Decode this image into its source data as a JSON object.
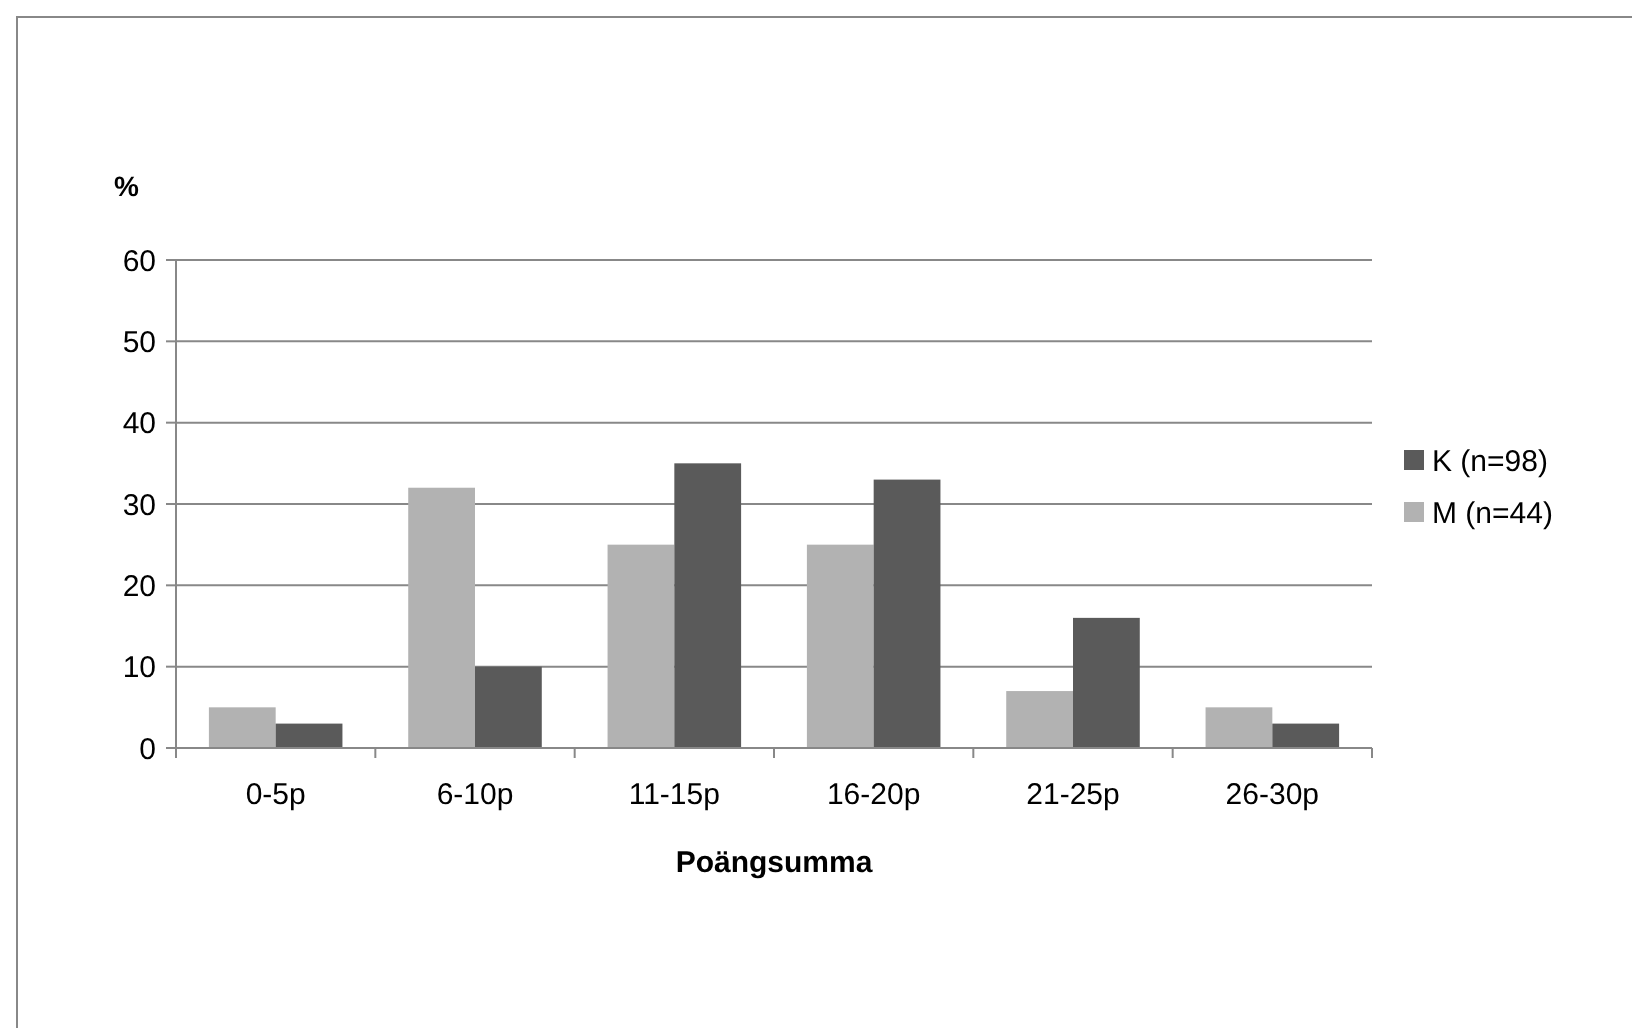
{
  "chart_data": {
    "type": "bar",
    "ylabel": "%",
    "xlabel": "Poängsumma",
    "categories": [
      "0-5p",
      "6-10p",
      "11-15p",
      "16-20p",
      "21-25p",
      "26-30p"
    ],
    "series": [
      {
        "name": "M (n=44)",
        "color": "#b2b2b2",
        "values": [
          5,
          32,
          25,
          25,
          7,
          5
        ]
      },
      {
        "name": "K (n=98)",
        "color": "#5a5a5a",
        "values": [
          3,
          10,
          35,
          33,
          16,
          3
        ]
      }
    ],
    "ylim": [
      0,
      60
    ],
    "yticks": [
      0,
      10,
      20,
      30,
      40,
      50,
      60
    ],
    "grid": "y",
    "legend": "right"
  }
}
